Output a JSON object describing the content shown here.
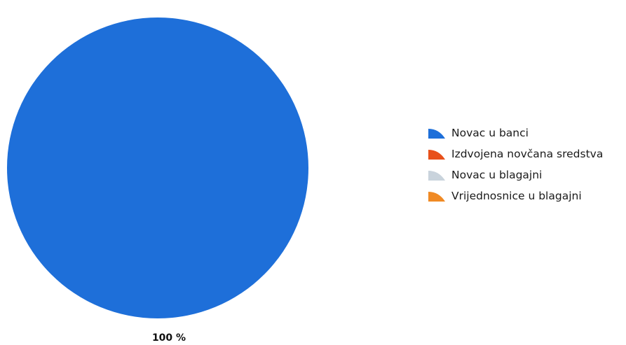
{
  "chart_data": {
    "type": "pie",
    "title": "",
    "series": [
      {
        "name": "Novac u banci",
        "value": 100,
        "color": "#1e6fd9"
      },
      {
        "name": "Izdvojena novčana sredstva",
        "value": 0,
        "color": "#e8501a"
      },
      {
        "name": "Novac u blagajni",
        "value": 0,
        "color": "#c9d3dc"
      },
      {
        "name": "Vrijednosnice u blagajni",
        "value": 0,
        "color": "#f08a24"
      }
    ],
    "data_labels": [
      "100 %"
    ],
    "legend_position": "right"
  }
}
